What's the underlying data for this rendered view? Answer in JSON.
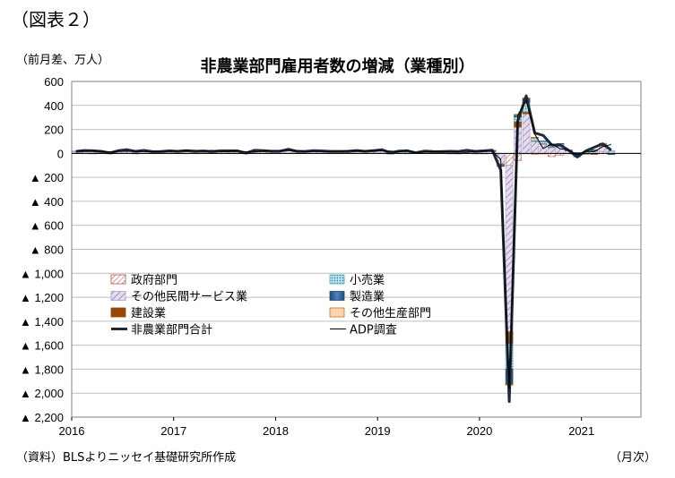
{
  "figure_label": "（図表２）",
  "unit_label": "（前月差、万人）",
  "source_label": "（資料）BLSよりニッセイ基礎研究所作成",
  "month_label": "（月次）",
  "chart_data": {
    "type": "bar",
    "title": "非農業部門雇用者数の増減（業種別）",
    "ylim": [
      -2200,
      600
    ],
    "y_ticks": [
      600,
      400,
      200,
      0,
      -200,
      -400,
      -600,
      -800,
      -1000,
      -1200,
      -1400,
      -1600,
      -1800,
      -2000,
      -2200
    ],
    "y_tick_labels": [
      "600",
      "400",
      "200",
      "0",
      "▲ 200",
      "▲ 400",
      "▲ 600",
      "▲ 800",
      "▲ 1,000",
      "▲ 1,200",
      "▲ 1,400",
      "▲ 1,600",
      "▲ 1,800",
      "▲ 2,000",
      "▲ 2,200"
    ],
    "x_ticks": [
      "2016",
      "2017",
      "2018",
      "2019",
      "2020",
      "2021"
    ],
    "grid": true,
    "legend_position": "lower-left",
    "months": [
      "2016-01",
      "2016-02",
      "2016-03",
      "2016-04",
      "2016-05",
      "2016-06",
      "2016-07",
      "2016-08",
      "2016-09",
      "2016-10",
      "2016-11",
      "2016-12",
      "2017-01",
      "2017-02",
      "2017-03",
      "2017-04",
      "2017-05",
      "2017-06",
      "2017-07",
      "2017-08",
      "2017-09",
      "2017-10",
      "2017-11",
      "2017-12",
      "2018-01",
      "2018-02",
      "2018-03",
      "2018-04",
      "2018-05",
      "2018-06",
      "2018-07",
      "2018-08",
      "2018-09",
      "2018-10",
      "2018-11",
      "2018-12",
      "2019-01",
      "2019-02",
      "2019-03",
      "2019-04",
      "2019-05",
      "2019-06",
      "2019-07",
      "2019-08",
      "2019-09",
      "2019-10",
      "2019-11",
      "2019-12",
      "2020-01",
      "2020-02",
      "2020-03",
      "2020-04",
      "2020-05",
      "2020-06",
      "2020-07",
      "2020-08",
      "2020-09",
      "2020-10",
      "2020-11",
      "2020-12",
      "2021-01",
      "2021-02",
      "2021-03",
      "2021-04"
    ],
    "series": [
      {
        "name": "政府部門",
        "kind": "bar",
        "color": "#c0504d",
        "pattern": "hatch-red",
        "values": [
          2,
          2,
          2,
          1,
          1,
          2,
          2,
          2,
          1,
          1,
          1,
          1,
          1,
          1,
          1,
          1,
          1,
          1,
          1,
          1,
          1,
          1,
          1,
          1,
          1,
          1,
          1,
          1,
          1,
          1,
          1,
          1,
          1,
          1,
          1,
          1,
          2,
          2,
          1,
          1,
          1,
          1,
          1,
          1,
          1,
          1,
          1,
          1,
          1,
          1,
          -1,
          -98,
          -59,
          -2,
          -7,
          -5,
          -27,
          -14,
          -3,
          -5,
          -3,
          -5,
          13,
          -4
        ]
      },
      {
        "name": "その他民間サービス業",
        "kind": "bar",
        "color": "#b1a0c7",
        "pattern": "hatch-purple",
        "values": [
          15,
          14,
          17,
          10,
          8,
          17,
          18,
          13,
          15,
          12,
          12,
          14,
          12,
          13,
          12,
          15,
          12,
          13,
          13,
          12,
          8,
          15,
          14,
          14,
          14,
          20,
          12,
          13,
          15,
          13,
          13,
          13,
          13,
          15,
          13,
          14,
          18,
          4,
          14,
          12,
          5,
          13,
          10,
          10,
          12,
          11,
          17,
          10,
          14,
          16,
          -90,
          -1390,
          220,
          330,
          100,
          80,
          50,
          60,
          20,
          -20,
          10,
          20,
          50,
          20
        ]
      },
      {
        "name": "建設業",
        "kind": "bar",
        "color": "#974706",
        "pattern": "solid-brown",
        "values": [
          2,
          2,
          2,
          2,
          0,
          2,
          2,
          1,
          2,
          1,
          1,
          1,
          2,
          3,
          2,
          1,
          1,
          2,
          1,
          2,
          1,
          1,
          2,
          2,
          3,
          5,
          2,
          2,
          2,
          2,
          1,
          2,
          1,
          2,
          2,
          3,
          4,
          -3,
          2,
          3,
          0,
          2,
          1,
          1,
          2,
          1,
          1,
          1,
          4,
          4,
          -10,
          -100,
          46,
          16,
          4,
          1,
          2,
          8,
          4,
          4,
          -1,
          -4,
          11,
          -1
        ]
      },
      {
        "name": "小売業",
        "kind": "bar",
        "color": "#4bacc6",
        "pattern": "dots-teal",
        "values": [
          1,
          4,
          5,
          4,
          1,
          3,
          2,
          1,
          2,
          2,
          2,
          3,
          1,
          1,
          1,
          2,
          1,
          1,
          1,
          1,
          -1,
          1,
          2,
          1,
          1,
          4,
          1,
          0,
          1,
          1,
          1,
          1,
          1,
          1,
          1,
          1,
          1,
          -1,
          1,
          -1,
          1,
          1,
          1,
          0,
          0,
          1,
          1,
          1,
          2,
          3,
          -4,
          -210,
          36,
          80,
          26,
          19,
          13,
          10,
          1,
          -5,
          2,
          4,
          4,
          1
        ]
      },
      {
        "name": "製造業",
        "kind": "bar",
        "color": "#1f4e79",
        "pattern": "grad-blue",
        "values": [
          0,
          0,
          -1,
          0,
          -1,
          0,
          0,
          -1,
          0,
          0,
          0,
          0,
          1,
          2,
          1,
          1,
          1,
          1,
          2,
          2,
          1,
          2,
          3,
          2,
          2,
          3,
          2,
          2,
          2,
          3,
          3,
          2,
          2,
          3,
          2,
          3,
          1,
          0,
          0,
          1,
          0,
          1,
          2,
          0,
          -1,
          -4,
          5,
          -1,
          -1,
          1,
          -2,
          -130,
          23,
          36,
          4,
          3,
          7,
          4,
          3,
          3,
          0,
          5,
          5,
          -1
        ]
      },
      {
        "name": "その他生産部門",
        "kind": "bar",
        "color": "#fcd5b4",
        "pattern": "fill-peach",
        "values": [
          0,
          0,
          0,
          0,
          0,
          0,
          0,
          0,
          0,
          0,
          0,
          0,
          0,
          0,
          0,
          0,
          0,
          0,
          0,
          0,
          0,
          0,
          0,
          0,
          0,
          0,
          0,
          0,
          0,
          0,
          0,
          0,
          0,
          0,
          0,
          0,
          0,
          0,
          0,
          0,
          0,
          0,
          0,
          0,
          0,
          0,
          0,
          0,
          0,
          0,
          0,
          -8,
          1,
          2,
          1,
          0,
          0,
          0,
          0,
          0,
          0,
          0,
          1,
          0
        ]
      },
      {
        "name": "非農業部門合計",
        "kind": "line",
        "color": "#1f2a36",
        "width": 3,
        "values": [
          17,
          24,
          22,
          17,
          4,
          23,
          31,
          17,
          25,
          15,
          16,
          21,
          17,
          23,
          17,
          20,
          15,
          21,
          21,
          21,
          2,
          26,
          23,
          18,
          18,
          35,
          17,
          17,
          23,
          20,
          17,
          17,
          17,
          24,
          18,
          22,
          31,
          5,
          19,
          21,
          6,
          19,
          16,
          15,
          18,
          16,
          26,
          17,
          21,
          27,
          -140,
          -2070,
          270,
          480,
          170,
          150,
          70,
          70,
          25,
          -30,
          20,
          50,
          80,
          27
        ]
      },
      {
        "name": "ADP調査",
        "kind": "line",
        "color": "#000000",
        "width": 1,
        "values": [
          19,
          20,
          19,
          17,
          12,
          17,
          18,
          18,
          16,
          15,
          16,
          17,
          24,
          25,
          26,
          18,
          25,
          16,
          18,
          23,
          13,
          11,
          19,
          25,
          23,
          24,
          25,
          17,
          17,
          16,
          17,
          17,
          23,
          20,
          18,
          27,
          21,
          19,
          14,
          28,
          3,
          11,
          14,
          17,
          12,
          11,
          8,
          18,
          20,
          17,
          -50,
          -1960,
          320,
          440,
          160,
          40,
          80,
          38,
          30,
          -12,
          17,
          14,
          56,
          74
        ]
      }
    ]
  }
}
